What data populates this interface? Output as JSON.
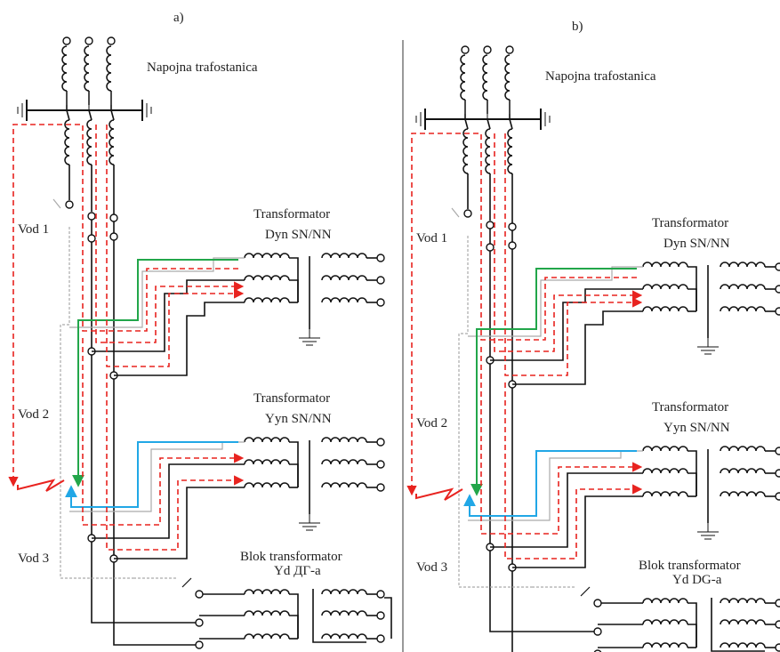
{
  "panels": [
    {
      "label": "a)",
      "substation": "Napojna trafostanica",
      "lines": [
        "Vod 1",
        "Vod 2",
        "Vod 3"
      ],
      "transformers": [
        {
          "title": "Transformator",
          "subtitle": "Dyn SN/NN"
        },
        {
          "title": "Transformator",
          "subtitle": "Yyn SN/NN"
        },
        {
          "title": "Blok transformator",
          "subtitle": "Yd ДГ-а"
        }
      ]
    },
    {
      "label": "b)",
      "substation": "Napojna trafostanica",
      "lines": [
        "Vod 1",
        "Vod 2",
        "Vod 3"
      ],
      "transformers": [
        {
          "title": "Transformator",
          "subtitle": "Dyn SN/NN"
        },
        {
          "title": "Transformator",
          "subtitle": "Yyn SN/NN"
        },
        {
          "title": "Blok transformator",
          "subtitle": "Yd DG-a"
        }
      ]
    }
  ]
}
